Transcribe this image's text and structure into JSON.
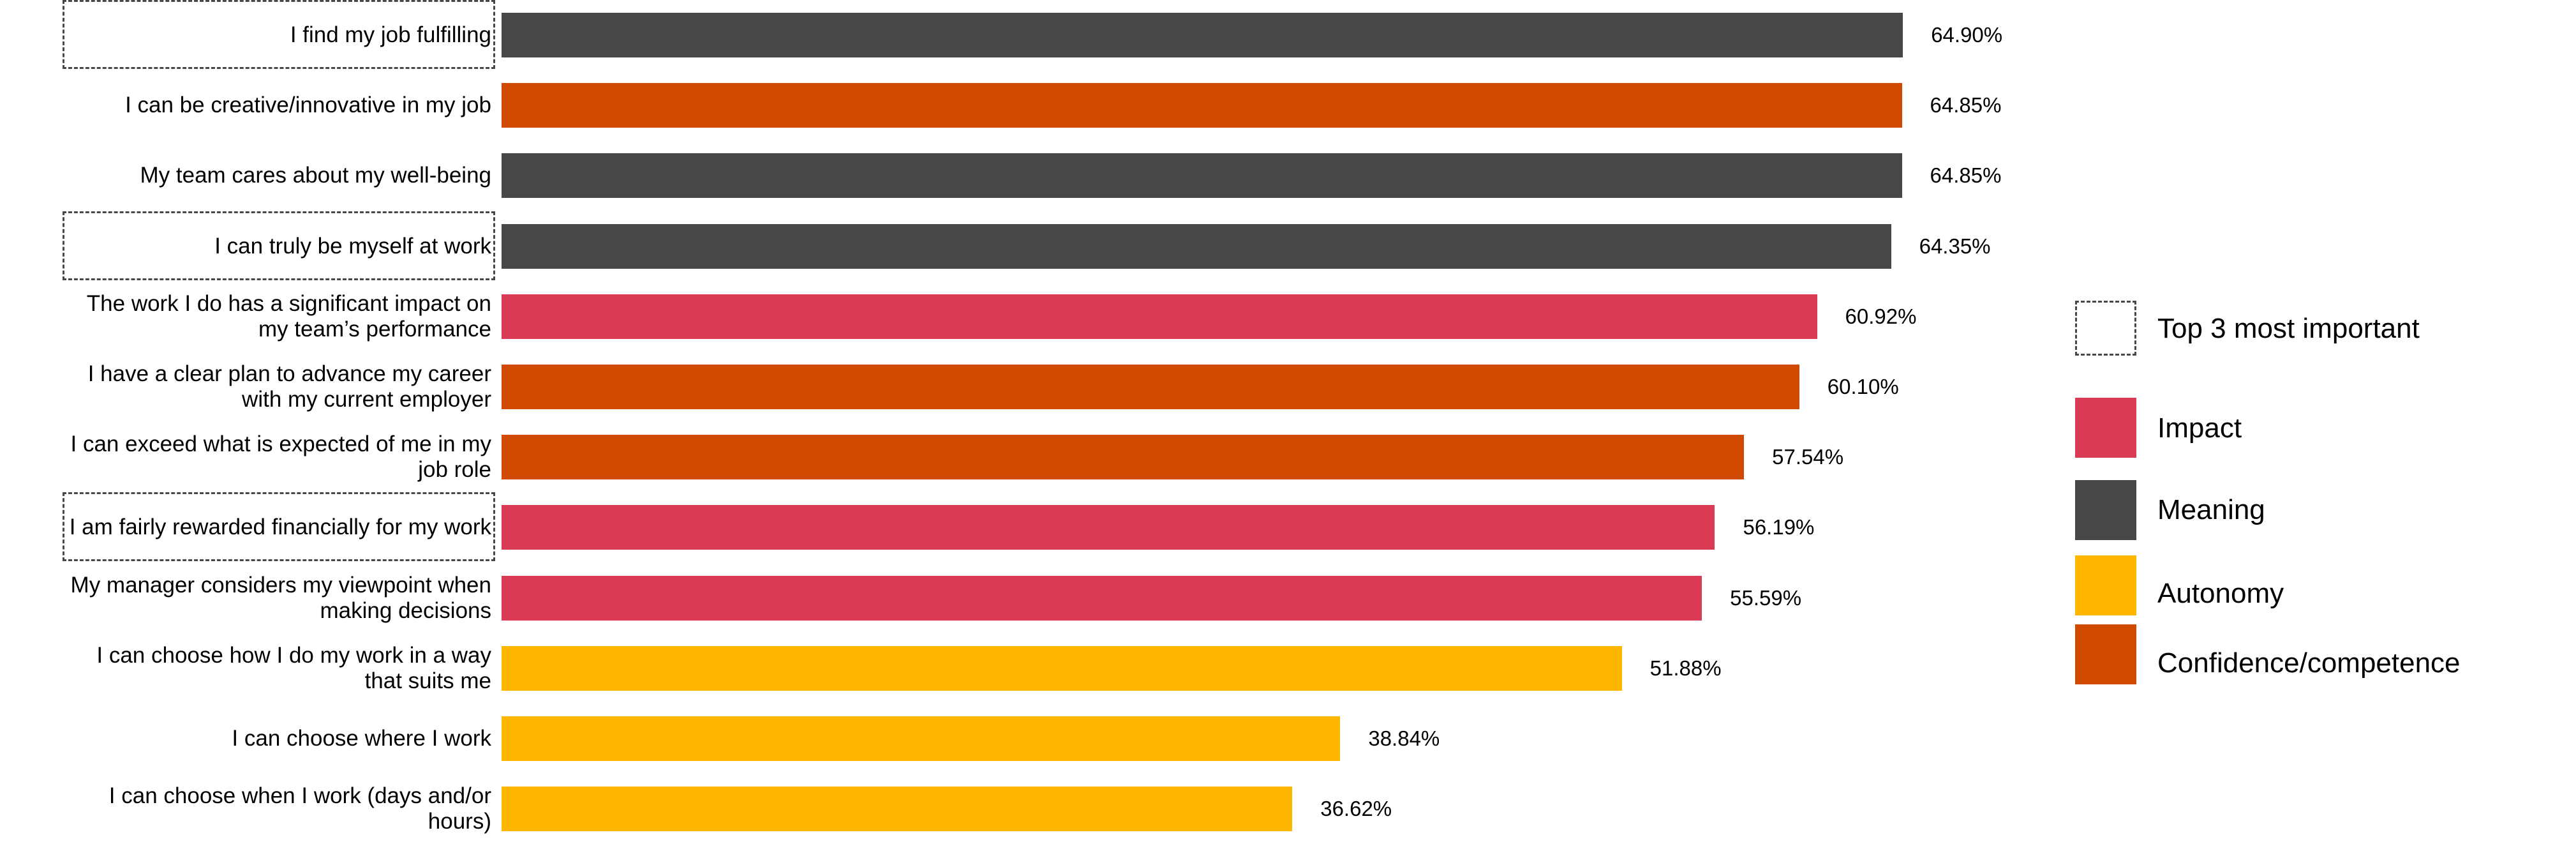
{
  "chart_data": {
    "type": "bar",
    "orientation": "horizontal",
    "title": "",
    "xlabel": "",
    "ylabel": "",
    "xlim": [
      0,
      100
    ],
    "grid": false,
    "legend_placement": "right",
    "categories": [
      "I find my job fulfilling",
      "I can be creative/innovative in my job",
      "My team cares about my well-being",
      "I can truly be myself at work",
      "The work I do has a significant impact on my team’s performance",
      "I have a clear plan to advance my career with my current employer",
      "I can exceed what is expected of me in my job role",
      "I am fairly rewarded financially for my work",
      "My manager considers my viewpoint when making decisions",
      "I can choose how I do my work in a way that suits me",
      "I can choose where I work",
      "I can choose when I work (days and/or hours)"
    ],
    "values": [
      64.9,
      64.85,
      64.85,
      64.35,
      60.92,
      60.1,
      57.54,
      56.19,
      55.59,
      51.88,
      38.84,
      36.62
    ],
    "value_labels": [
      "64.90%",
      "64.85%",
      "64.85%",
      "64.35%",
      "60.92%",
      "60.10%",
      "57.54%",
      "56.19%",
      "55.59%",
      "51.88%",
      "38.84%",
      "36.62%"
    ],
    "groups": [
      "Meaning",
      "Confidence/competence",
      "Meaning",
      "Meaning",
      "Impact",
      "Confidence/competence",
      "Confidence/competence",
      "Impact",
      "Impact",
      "Autonomy",
      "Autonomy",
      "Autonomy"
    ],
    "top3_most_important": [
      true,
      false,
      false,
      true,
      false,
      false,
      false,
      true,
      false,
      false,
      false,
      false
    ],
    "legend": {
      "top3_label": "Top 3 most important",
      "series": [
        {
          "name": "Impact",
          "color": "#DB3A55"
        },
        {
          "name": "Meaning",
          "color": "#474747"
        },
        {
          "name": "Autonomy",
          "color": "#FFB600"
        },
        {
          "name": "Confidence/competence",
          "color": "#D04A02"
        }
      ]
    }
  }
}
